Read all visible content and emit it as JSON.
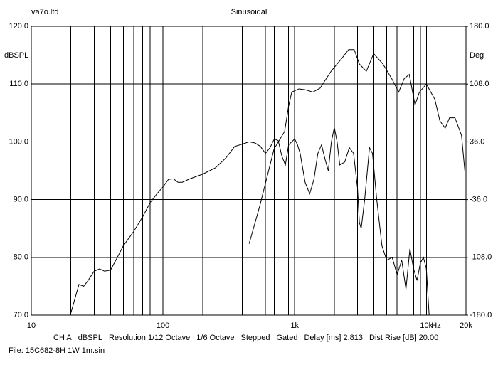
{
  "chart_data": {
    "type": "line",
    "title": "Sinusoidal",
    "brand": "va7o.ltd",
    "ylabel": "dBSPL",
    "y2label": "Deg",
    "xlabel": "Hz",
    "log_x": true,
    "grid": true,
    "xlim": [
      10,
      20000
    ],
    "xticks": [
      10,
      100,
      {
        "value": 1000,
        "label": "1k"
      },
      {
        "value": 10000,
        "label": "10k"
      },
      {
        "value": 20000,
        "label": "20k"
      }
    ],
    "xgrid": [
      20,
      30,
      40,
      50,
      60,
      70,
      80,
      90,
      200,
      300,
      400,
      500,
      600,
      700,
      800,
      900,
      2000,
      3000,
      4000,
      5000,
      6000,
      7000,
      8000,
      9000
    ],
    "ylim": [
      70,
      120
    ],
    "yticks": [
      {
        "value": 70,
        "label": "70.0"
      },
      {
        "value": 80,
        "label": "80.0"
      },
      {
        "value": 90,
        "label": "90.0"
      },
      {
        "value": 100,
        "label": "100.0"
      },
      {
        "value": 110,
        "label": "110.0"
      },
      {
        "value": 120,
        "label": "120.0"
      }
    ],
    "y2lim": [
      -180,
      180
    ],
    "y2ticks": [
      {
        "value": -180,
        "label": "-180.0"
      },
      {
        "value": -108,
        "label": "-108.0"
      },
      {
        "value": -36,
        "label": "-36.0"
      },
      {
        "value": 36,
        "label": "36.0"
      },
      {
        "value": 108,
        "label": "108.0"
      },
      {
        "value": 180,
        "label": "180.0"
      }
    ],
    "series": [
      {
        "color": "#000000",
        "axis": "y",
        "x": [
          20,
          23,
          25,
          27,
          30,
          33,
          36,
          40,
          45,
          50,
          60,
          70,
          80,
          90,
          100,
          110,
          120,
          130,
          140,
          160,
          200,
          250,
          300,
          350,
          400,
          450,
          500,
          550,
          600,
          650,
          700,
          750,
          800,
          850,
          900,
          950,
          1000,
          1050,
          1100,
          1200,
          1300,
          1400,
          1500,
          1600,
          1700,
          1800,
          1900,
          2000,
          2100,
          2200,
          2400,
          2600,
          2800,
          3000,
          3100,
          3200,
          3400,
          3700,
          3900,
          4200,
          4600,
          5000,
          5500,
          6000,
          6500,
          7000,
          7500,
          8000,
          8500,
          9000,
          9500,
          10000,
          10500
        ],
        "values": [
          70.4,
          75.3,
          75.0,
          76.0,
          77.6,
          78.0,
          77.6,
          77.8,
          80,
          82,
          84.5,
          87,
          89.5,
          91,
          92.2,
          93.5,
          93.6,
          93.0,
          93.0,
          93.6,
          94.4,
          95.5,
          97.2,
          99.2,
          99.6,
          100,
          99.8,
          99.2,
          98,
          99,
          100.5,
          100.2,
          97.5,
          96,
          99.5,
          100,
          100.5,
          99.5,
          98,
          93,
          91,
          93.5,
          98,
          99.5,
          97,
          95,
          100,
          102.5,
          100,
          96,
          96.5,
          99,
          98,
          92,
          86,
          85,
          90,
          99,
          98,
          90,
          82,
          79.5,
          80,
          77,
          79.5,
          74.5,
          81.5,
          78,
          76,
          79,
          80,
          78,
          70
        ]
      },
      {
        "color": "#000000",
        "axis": "y2",
        "x": [
          451,
          543,
          697,
          839,
          898,
          950,
          1077,
          1200,
          1375,
          1560,
          1890,
          2280,
          2570,
          2830,
          3100,
          3500,
          3980,
          4680,
          5450,
          6160,
          6800,
          7420,
          8200,
          8860,
          10000,
          11600,
          12680,
          13900,
          15000,
          16500,
          18500,
          19600
        ],
        "values": [
          -91,
          -44,
          27,
          49,
          80,
          98,
          102,
          101,
          98,
          103,
          124,
          140,
          151,
          151,
          133,
          124,
          146,
          133,
          115,
          98,
          115,
          120,
          82,
          98,
          108,
          89,
          62,
          53,
          66,
          66,
          44,
          0
        ]
      }
    ],
    "footer": [
      "CH A",
      "dBSPL",
      "Resolution 1/12 Octave",
      "1/6 Octave",
      "Stepped",
      "Gated",
      "Delay [ms] 2.813",
      "Dist Rise [dB] 20.00"
    ],
    "file": "File: 15C682-8H 1W 1m.sin"
  }
}
